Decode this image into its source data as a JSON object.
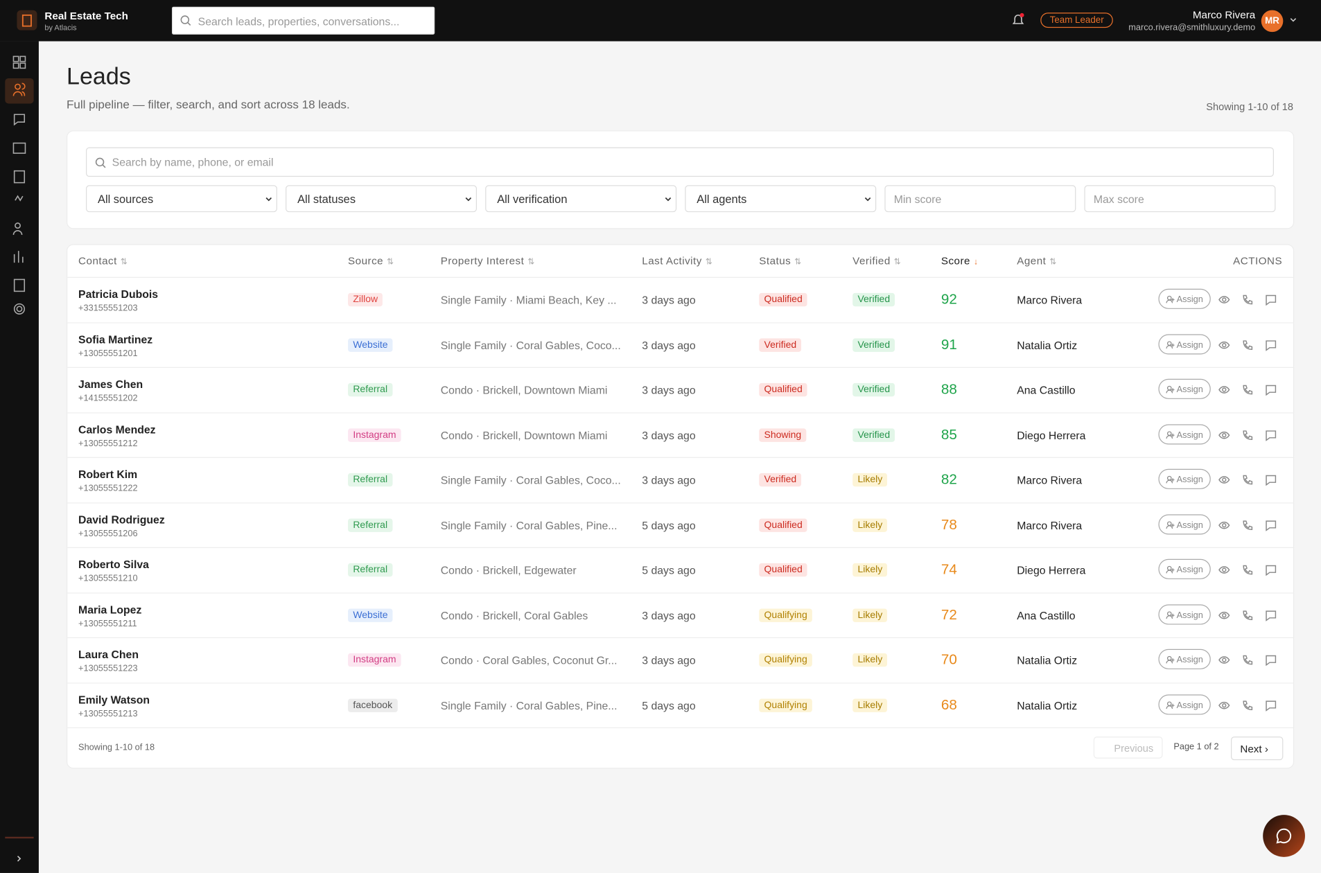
{
  "app": {
    "name": "Real Estate Tech",
    "sub": "by Atlacis"
  },
  "search_placeholder": "Search leads, properties, conversations...",
  "user": {
    "role": "Team Leader",
    "name": "Marco Rivera",
    "email": "marco.rivera@smithluxury.demo",
    "initials": "MR"
  },
  "page": {
    "title": "Leads",
    "subtitle": "Full pipeline — filter, search, and sort across 18 leads.",
    "showing": "Showing 1-10 of 18"
  },
  "filters": {
    "search": "Search by name, phone, or email",
    "selects": [
      "All sources",
      "All statuses",
      "All verification",
      "All agents"
    ],
    "inputs": [
      "Min score",
      "Max score"
    ]
  },
  "table": {
    "columns": [
      "Contact",
      "Source",
      "Property Interest",
      "Last Activity",
      "Status",
      "Verified",
      "Score",
      "Agent",
      "ACTIONS"
    ],
    "assign": "Assign",
    "rows": [
      {
        "name": "Patricia Dubois",
        "phone": "+33155551203",
        "source": "Zillow",
        "property": "Single Family · Miami Beach, Key ...",
        "activity": "3 days ago",
        "status": "Qualified",
        "verified": "Verified",
        "score": 92,
        "agent": "Marco Rivera"
      },
      {
        "name": "Sofia Martinez",
        "phone": "+13055551201",
        "source": "Website",
        "property": "Single Family · Coral Gables, Coco...",
        "activity": "3 days ago",
        "status": "Verified",
        "verified": "Verified",
        "score": 91,
        "agent": "Natalia Ortiz"
      },
      {
        "name": "James Chen",
        "phone": "+14155551202",
        "source": "Referral",
        "property": "Condo · Brickell, Downtown Miami",
        "activity": "3 days ago",
        "status": "Qualified",
        "verified": "Verified",
        "score": 88,
        "agent": "Ana Castillo"
      },
      {
        "name": "Carlos Mendez",
        "phone": "+13055551212",
        "source": "Instagram",
        "property": "Condo · Brickell, Downtown Miami",
        "activity": "3 days ago",
        "status": "Showing",
        "verified": "Verified",
        "score": 85,
        "agent": "Diego Herrera"
      },
      {
        "name": "Robert Kim",
        "phone": "+13055551222",
        "source": "Referral",
        "property": "Single Family · Coral Gables, Coco...",
        "activity": "3 days ago",
        "status": "Verified",
        "verified": "Likely",
        "score": 82,
        "agent": "Marco Rivera"
      },
      {
        "name": "David Rodriguez",
        "phone": "+13055551206",
        "source": "Referral",
        "property": "Single Family · Coral Gables, Pine...",
        "activity": "5 days ago",
        "status": "Qualified",
        "verified": "Likely",
        "score": 78,
        "agent": "Marco Rivera"
      },
      {
        "name": "Roberto Silva",
        "phone": "+13055551210",
        "source": "Referral",
        "property": "Condo · Brickell, Edgewater",
        "activity": "5 days ago",
        "status": "Qualified",
        "verified": "Likely",
        "score": 74,
        "agent": "Diego Herrera"
      },
      {
        "name": "Maria Lopez",
        "phone": "+13055551211",
        "source": "Website",
        "property": "Condo · Brickell, Coral Gables",
        "activity": "3 days ago",
        "status": "Qualifying",
        "verified": "Likely",
        "score": 72,
        "agent": "Ana Castillo"
      },
      {
        "name": "Laura Chen",
        "phone": "+13055551223",
        "source": "Instagram",
        "property": "Condo · Coral Gables, Coconut Gr...",
        "activity": "3 days ago",
        "status": "Qualifying",
        "verified": "Likely",
        "score": 70,
        "agent": "Natalia Ortiz"
      },
      {
        "name": "Emily Watson",
        "phone": "+13055551213",
        "source": "facebook",
        "property": "Single Family · Coral Gables, Pine...",
        "activity": "5 days ago",
        "status": "Qualifying",
        "verified": "Likely",
        "score": 68,
        "agent": "Natalia Ortiz"
      }
    ]
  },
  "pagination": {
    "showing": "Showing 1-10 of 18",
    "previous": "Previous",
    "page": "Page 1 of 2",
    "next": "Next"
  }
}
